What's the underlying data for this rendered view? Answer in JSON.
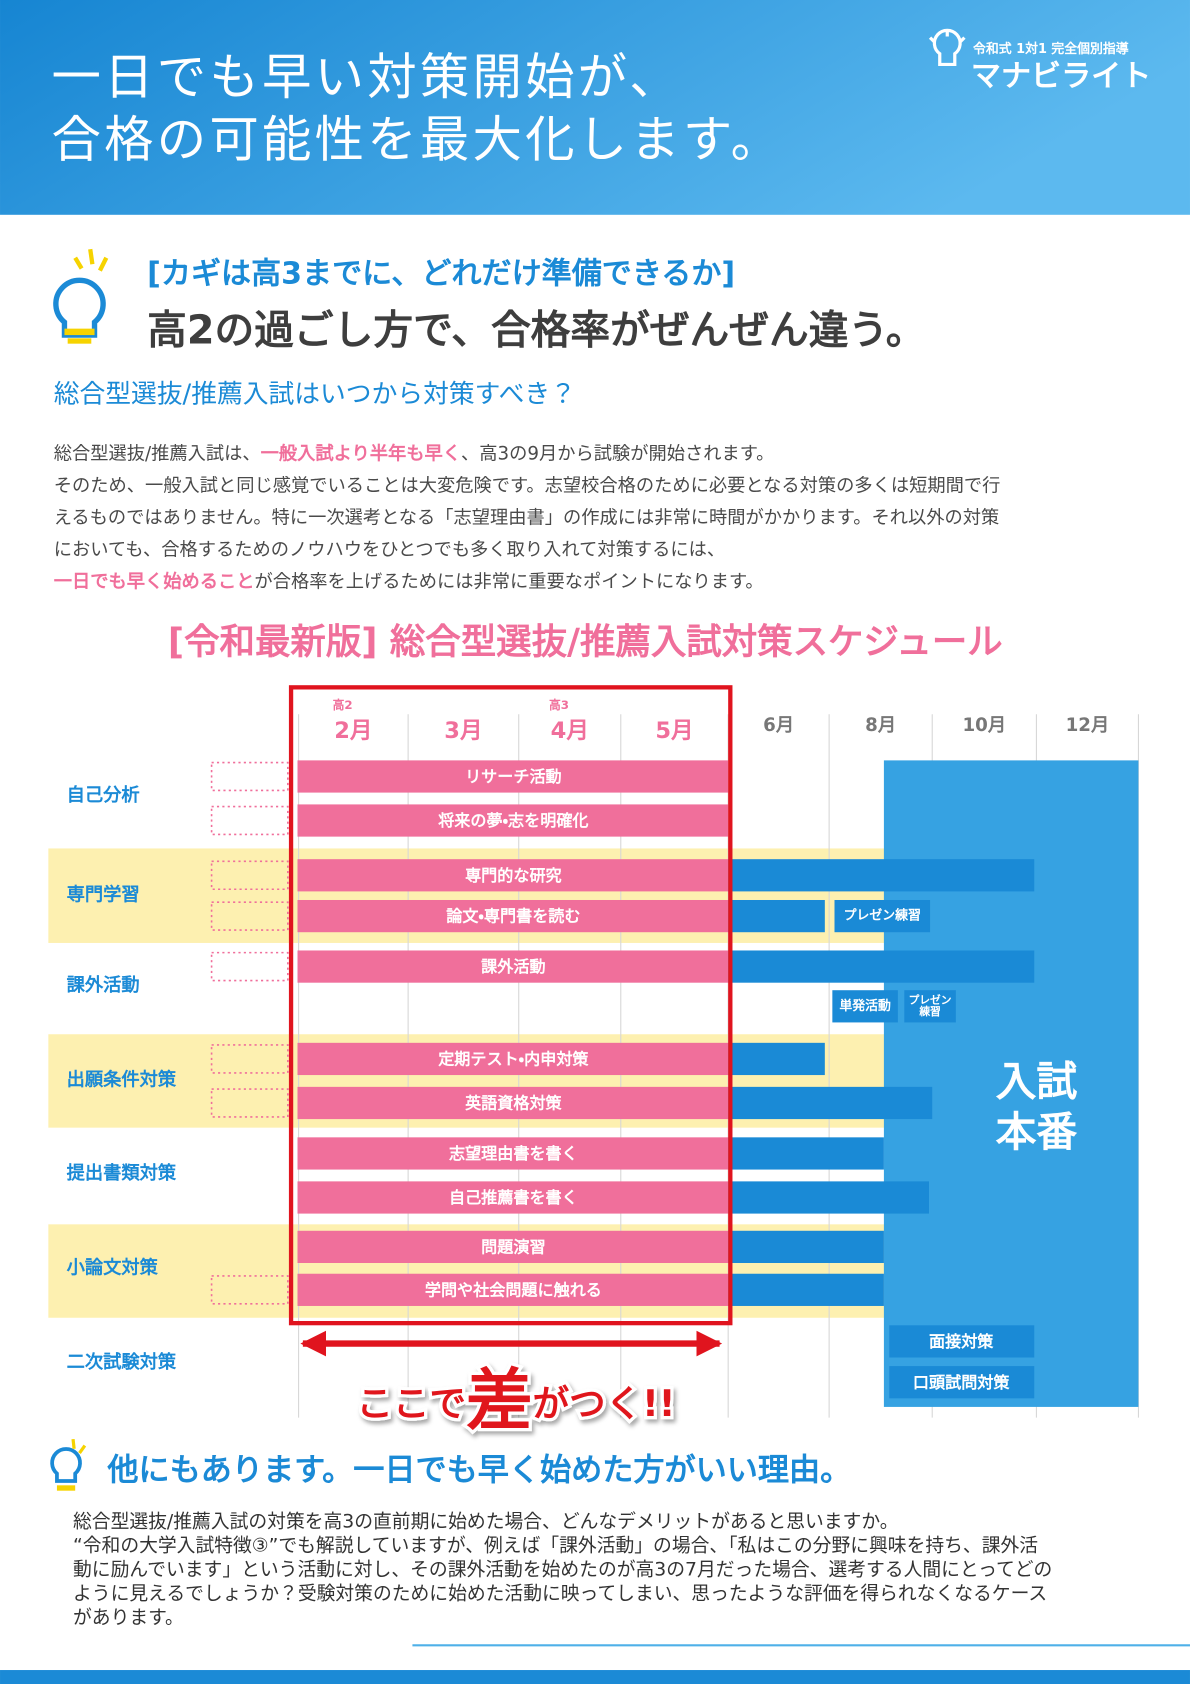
{
  "header": {
    "title_lines": [
      "一日でも早い対策開始が、",
      "合格の可能性を最大化します。"
    ],
    "logo": {
      "tagline": "令和式 1対1 完全個別指導",
      "name": "マナビライト"
    }
  },
  "intro": {
    "kicker": "[カギは高3までに、どれだけ準備できるか]",
    "headline": "高2の過ごし方で、合格率がぜんぜん違う。",
    "question": "総合型選抜/推薦入試はいつから対策すべき？",
    "lines": [
      [
        "総合型選抜/推薦入試は、",
        {
          "text": "一般入試より半年も早く",
          "em": true
        },
        "、高3の9月から試験が開始されます。"
      ],
      [
        "そのため、一般入試と同じ感覚でいることは大変危険です。志望校合格のために必要となる対策の多くは短期間で行"
      ],
      [
        "えるものではありません。特に一次選考となる「志望理由書」の作成には非常に時間がかかります。それ以外の対策"
      ],
      [
        "においても、合格するためのノウハウをひとつでも多く取り入れて対策するには、"
      ],
      [
        {
          "text": "一日でも早く始めること",
          "em": true
        },
        "が合格率を上げるためには非常に重要なポイントになります。"
      ]
    ]
  },
  "schedule": {
    "title": "[令和最新版] 総合型選抜/推薦入試対策スケジュール",
    "months": [
      {
        "label": "2月",
        "grade": "高2"
      },
      {
        "label": "3月"
      },
      {
        "label": "4月",
        "grade": "高3"
      },
      {
        "label": "5月"
      },
      {
        "label": "6月"
      },
      {
        "label": "8月"
      },
      {
        "label": "10月"
      },
      {
        "label": "12月"
      }
    ],
    "categories": [
      {
        "label": "自己分析",
        "items": [
          "リサーチ活動",
          "将来の夢・志を明確化"
        ]
      },
      {
        "label": "専門学習",
        "items": [
          "専門的な研究",
          "論文・専門書を読む"
        ]
      },
      {
        "label": "課外活動",
        "items": [
          "課外活動"
        ]
      },
      {
        "label": "出願条件対策",
        "items": [
          "定期テスト・内申対策",
          "英語資格対策"
        ]
      },
      {
        "label": "提出書類対策",
        "items": [
          "志望理由書を書く",
          "自己推薦書を書く"
        ]
      },
      {
        "label": "小論文対策",
        "items": [
          "問題演習",
          "学問や社会問題に触れる"
        ]
      },
      {
        "label": "二次試験対策",
        "items": [
          "面接対策",
          "口頭試問対策"
        ]
      }
    ],
    "notes": [
      {
        "lines": [
          "プレゼン練習"
        ]
      },
      {
        "lines": [
          "単発活動"
        ]
      },
      {
        "lines": [
          "プレゼン",
          "練習"
        ]
      }
    ],
    "exam": {
      "lines": [
        "入試",
        "本番"
      ]
    },
    "callout": [
      "ここで",
      "差",
      "がつく!!"
    ]
  },
  "reasons": {
    "heading": "他にもあります。一日でも早く始めた方がいい理由。",
    "lines": [
      "総合型選抜/推薦入試の対策を高3の直前期に始めた場合、どんなデメリットがあると思いますか。",
      "“令和の大学入試特徴③”でも解説していますが、例えば「課外活動」の場合、「私はこの分野に興味を持ち、課外活",
      "動に励んでいます」という活動に対し、その課外活動を始めたのが高3の7月だった場合、選考する人間にとってどの",
      "ように見えるでしょうか？受験対策のために始めた活動に映ってしまい、思ったような評価を得られなくなるケース",
      "があります。"
    ]
  }
}
